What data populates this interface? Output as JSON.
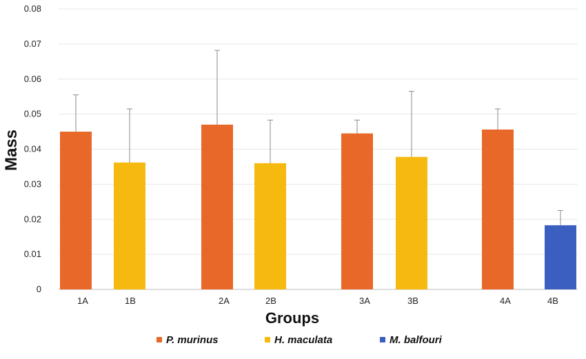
{
  "chart_data": {
    "type": "bar",
    "xlabel": "Groups",
    "ylabel": "Mass",
    "ylim": [
      0,
      0.08
    ],
    "yticks": [
      "0",
      "0.01",
      "0.02",
      "0.03",
      "0.04",
      "0.05",
      "0.06",
      "0.07",
      "0.08"
    ],
    "grid": true,
    "legend_position": "bottom",
    "series": [
      {
        "name": "P. murinus",
        "color": "#e8682a"
      },
      {
        "name": "H. maculata",
        "color": "#f5b90f"
      },
      {
        "name": "M. balfouri",
        "color": "#3b5fc0"
      }
    ],
    "bars": [
      {
        "category": "1A",
        "series": "P. murinus",
        "value": 0.045,
        "error_top": 0.0555
      },
      {
        "category": "1B",
        "series": "H. maculata",
        "value": 0.0362,
        "error_top": 0.0515
      },
      {
        "category": "2A",
        "series": "P. murinus",
        "value": 0.047,
        "error_top": 0.0682
      },
      {
        "category": "2B",
        "series": "H. maculata",
        "value": 0.036,
        "error_top": 0.0483
      },
      {
        "category": "3A",
        "series": "P. murinus",
        "value": 0.0445,
        "error_top": 0.0483
      },
      {
        "category": "3B",
        "series": "H. maculata",
        "value": 0.0378,
        "error_top": 0.0565
      },
      {
        "category": "4A",
        "series": "P. murinus",
        "value": 0.0456,
        "error_top": 0.0515
      },
      {
        "category": "4B",
        "series": "M. balfouri",
        "value": 0.0183,
        "error_top": 0.0225
      }
    ]
  }
}
